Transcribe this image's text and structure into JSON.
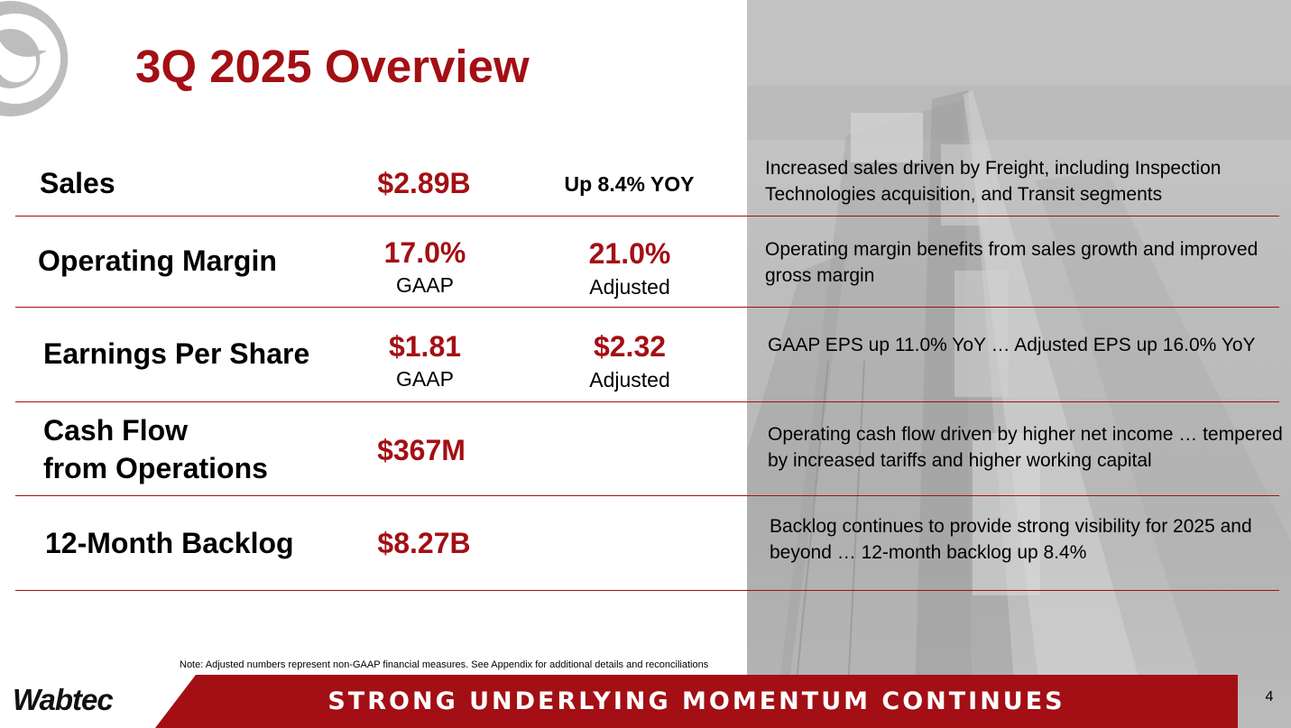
{
  "slide": {
    "title": "3Q 2025 Overview",
    "accent_color": "#a30f14",
    "page_number": "4"
  },
  "rows": [
    {
      "label": "Sales",
      "value1": "$2.89B",
      "value2_plain": "Up 8.4% YOY",
      "description": "Increased sales driven by Freight, including Inspection Technologies acquisition, and Transit segments"
    },
    {
      "label": "Operating Margin",
      "value1": "17.0%",
      "value1_sub": "GAAP",
      "value2": "21.0%",
      "value2_sub": "Adjusted",
      "description": "Operating margin benefits from sales growth and improved gross margin"
    },
    {
      "label": "Earnings Per Share",
      "value1": "$1.81",
      "value1_sub": "GAAP",
      "value2": "$2.32",
      "value2_sub": "Adjusted",
      "description": "GAAP EPS up 11.0% YoY … Adjusted EPS up 16.0% YoY"
    },
    {
      "label_line1": "Cash Flow",
      "label_line2": "from Operations",
      "value1": "$367M",
      "description": "Operating cash flow driven by higher net income … tempered by increased tariffs and higher working capital"
    },
    {
      "label": "12-Month Backlog",
      "value1": "$8.27B",
      "description": "Backlog continues to provide strong visibility for 2025 and beyond … 12-month backlog up 8.4%"
    }
  ],
  "note": "Note:  Adjusted numbers represent non-GAAP financial measures. See Appendix for additional details and reconciliations",
  "footer": {
    "banner": "STRONG UNDERLYING MOMENTUM CONTINUES",
    "logo_text": "Wabtec"
  },
  "icons": {
    "logo_mark": "wabtec-swirl-logo-icon",
    "background": "train-photo"
  }
}
